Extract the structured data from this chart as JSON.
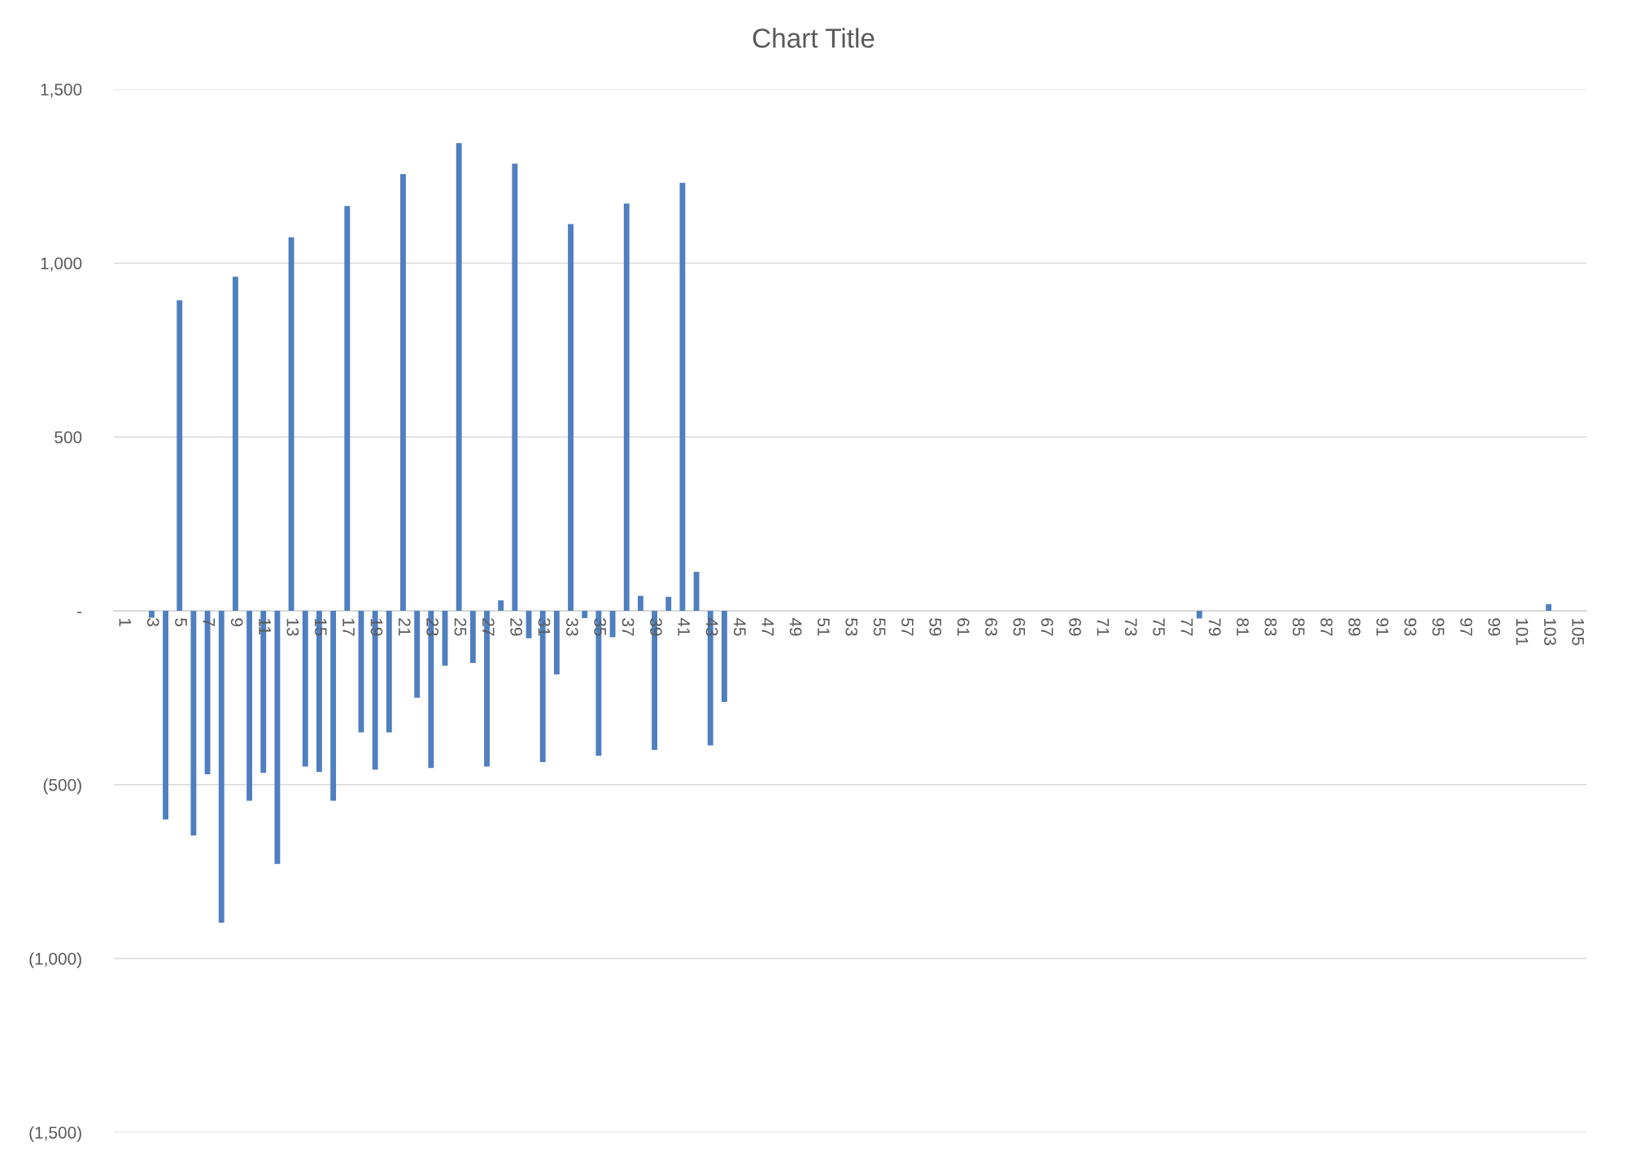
{
  "chart_data": {
    "type": "bar",
    "title": "Chart Title",
    "categories": [
      "1",
      null,
      "3",
      null,
      "5",
      null,
      "7",
      null,
      "9",
      null,
      "11",
      null,
      "13",
      null,
      "15",
      null,
      "17",
      null,
      "19",
      null,
      "21",
      null,
      "23",
      null,
      "25",
      null,
      "27",
      null,
      "29",
      null,
      "31",
      null,
      "33",
      null,
      "35",
      null,
      "37",
      null,
      "39",
      null,
      "41",
      null,
      "43",
      null,
      "45",
      null,
      "47",
      null,
      "49",
      null,
      "51",
      null,
      "53",
      null,
      "55",
      null,
      "57",
      null,
      "59",
      null,
      "61",
      null,
      "63",
      null,
      "65",
      null,
      "67",
      null,
      "69",
      null,
      "71",
      null,
      "73",
      null,
      "75",
      null,
      "77",
      null,
      "79",
      null,
      "81",
      null,
      "83",
      null,
      "85",
      null,
      "87",
      null,
      "89",
      null,
      "91",
      null,
      "93",
      null,
      "95",
      null,
      "97",
      null,
      "99",
      null,
      "101",
      null,
      "103",
      null,
      "105"
    ],
    "values": [
      0,
      0,
      -20,
      -600,
      893,
      -646,
      -470,
      -897,
      961,
      -546,
      -466,
      -728,
      1074,
      -448,
      -463,
      -546,
      1164,
      -350,
      -457,
      -350,
      1256,
      -250,
      -452,
      -158,
      1345,
      -150,
      -448,
      30,
      1286,
      -79,
      -435,
      -183,
      1112,
      -21,
      -417,
      -76,
      1171,
      43,
      -400,
      40,
      1231,
      112,
      -387,
      -262,
      0,
      0,
      0,
      0,
      0,
      0,
      0,
      0,
      0,
      0,
      0,
      0,
      0,
      0,
      0,
      0,
      0,
      0,
      0,
      0,
      0,
      0,
      0,
      0,
      0,
      0,
      0,
      0,
      0,
      0,
      0,
      0,
      0,
      -22,
      0,
      0,
      0,
      0,
      0,
      0,
      0,
      0,
      0,
      0,
      0,
      0,
      0,
      0,
      0,
      0,
      0,
      0,
      0,
      0,
      0,
      0,
      0,
      0,
      19,
      0,
      0
    ],
    "color": "#4f7fbf",
    "ylim": [
      -1500,
      1500
    ],
    "yticks": [
      {
        "value": -1500,
        "label": "(1,500)"
      },
      {
        "value": -1000,
        "label": "(1,000)"
      },
      {
        "value": -500,
        "label": "(500)"
      },
      {
        "value": 0,
        "label": "-"
      },
      {
        "value": 500,
        "label": "500"
      },
      {
        "value": 1000,
        "label": "1,000"
      },
      {
        "value": 1500,
        "label": "1,500"
      }
    ],
    "grid": "y"
  }
}
